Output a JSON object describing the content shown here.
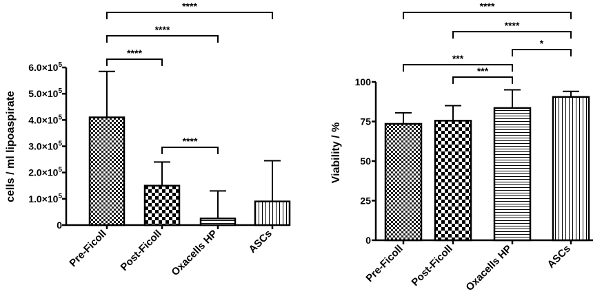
{
  "chart_data": [
    {
      "type": "bar",
      "ylabel": "cells / ml lipoaspirate",
      "categories": [
        "Pre-Ficoll",
        "Post-Ficoll",
        "Oxacells HP",
        "ASCs"
      ],
      "values": [
        410000,
        150000,
        25000,
        90000
      ],
      "errors": [
        175000,
        90000,
        105000,
        155000
      ],
      "patterns": [
        "dense-check",
        "checker",
        "horizontal",
        "vertical"
      ],
      "ylim": [
        0,
        600000
      ],
      "ticks": [
        {
          "value": 0,
          "label": "0"
        },
        {
          "value": 100000,
          "mantissa": "1.0",
          "exp": "5"
        },
        {
          "value": 200000,
          "mantissa": "2.0",
          "exp": "5"
        },
        {
          "value": 300000,
          "mantissa": "3.0",
          "exp": "5"
        },
        {
          "value": 400000,
          "mantissa": "4.0",
          "exp": "5"
        },
        {
          "value": 500000,
          "mantissa": "5.0",
          "exp": "5"
        },
        {
          "value": 600000,
          "mantissa": "6.0",
          "exp": "5"
        }
      ],
      "tick_times": "×10",
      "significance": [
        {
          "from": 0,
          "to": 1,
          "label": "****"
        },
        {
          "from": 0,
          "to": 2,
          "label": "****"
        },
        {
          "from": 0,
          "to": 3,
          "label": "****"
        },
        {
          "from": 1,
          "to": 2,
          "label": "****"
        }
      ]
    },
    {
      "type": "bar",
      "ylabel": "Viability / %",
      "categories": [
        "Pre-Ficoll",
        "Post-Ficoll",
        "Oxacells HP",
        "ASCs"
      ],
      "values": [
        73.5,
        75.5,
        83.5,
        90.5
      ],
      "errors": [
        7,
        9.5,
        11.5,
        3.5
      ],
      "patterns": [
        "dense-check",
        "checker",
        "horizontal",
        "vertical"
      ],
      "ylim": [
        0,
        100
      ],
      "ticks": [
        {
          "value": 0,
          "label": "0"
        },
        {
          "value": 25,
          "label": "25"
        },
        {
          "value": 50,
          "label": "50"
        },
        {
          "value": 75,
          "label": "75"
        },
        {
          "value": 100,
          "label": "100"
        }
      ],
      "significance": [
        {
          "from": 0,
          "to": 2,
          "label": "***"
        },
        {
          "from": 1,
          "to": 2,
          "label": "***"
        },
        {
          "from": 2,
          "to": 3,
          "label": "*"
        },
        {
          "from": 1,
          "to": 3,
          "label": "****"
        },
        {
          "from": 0,
          "to": 3,
          "label": "****"
        }
      ]
    }
  ]
}
